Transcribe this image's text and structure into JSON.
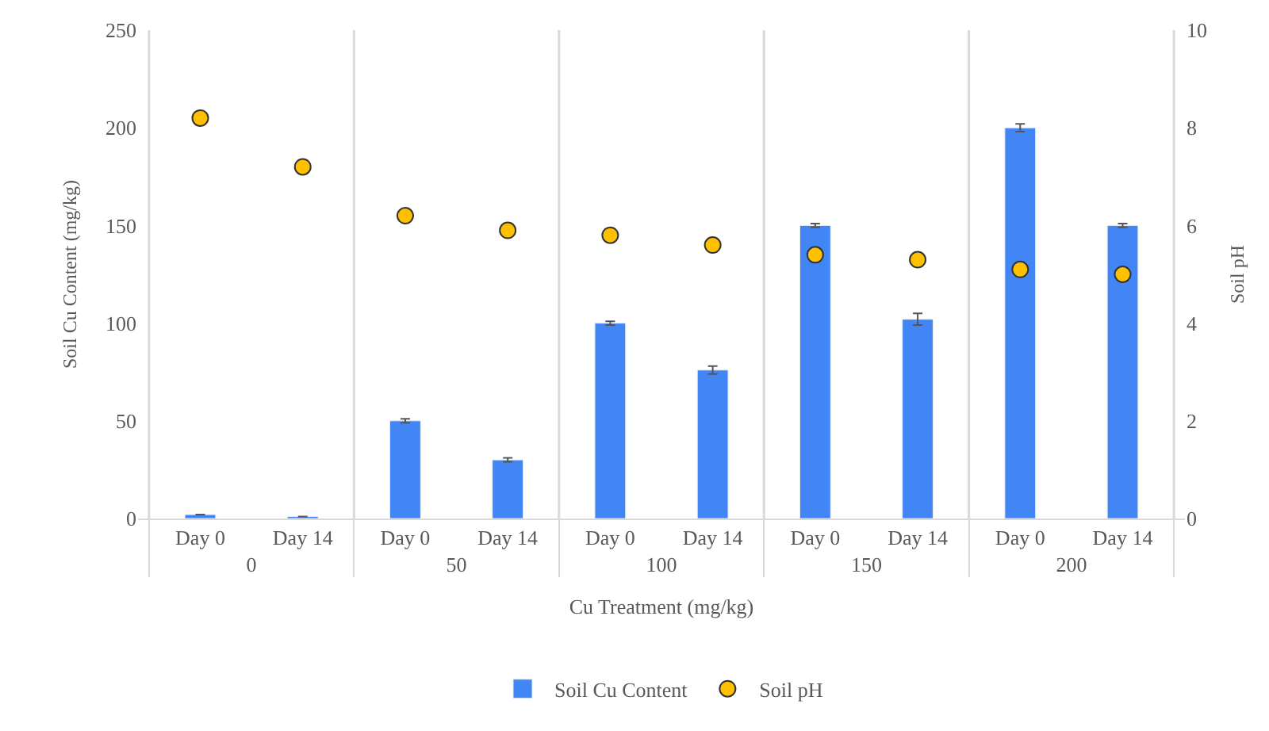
{
  "chart_data": {
    "type": "bar",
    "xlabel": "Cu Treatment (mg/kg)",
    "ylabel": "Soil Cu Content (mg/kg)",
    "y2label": "Soil pH",
    "categories": [
      "Day 0",
      "Day 14",
      "Day 0",
      "Day 14",
      "Day 0",
      "Day 14",
      "Day 0",
      "Day 14",
      "Day 0",
      "Day 14"
    ],
    "annotations": [
      "0",
      "50",
      "100",
      "150",
      "200"
    ],
    "series": [
      {
        "name": "Soil Cu Content",
        "color": "#4285f4",
        "values": [
          2,
          1,
          50,
          30,
          100,
          76,
          150,
          102,
          200,
          150
        ],
        "errors": [
          null,
          null,
          1,
          1,
          1,
          2,
          1,
          3,
          2,
          1
        ]
      },
      {
        "name": "Soil pH",
        "type": "scatter",
        "axis": "y2",
        "color": "#ffc000",
        "marker": "circle",
        "values": [
          8.2,
          7.2,
          6.2,
          5.9,
          5.8,
          5.6,
          5.4,
          5.3,
          5.1,
          5.0
        ]
      }
    ],
    "ylim": [
      0,
      250
    ],
    "yticks": [
      0,
      50,
      100,
      150,
      200,
      250
    ],
    "y2lim": [
      0,
      10
    ],
    "y2ticks": [
      0,
      2,
      4,
      6,
      8,
      10
    ],
    "grid": "x",
    "legend": "bottom"
  }
}
